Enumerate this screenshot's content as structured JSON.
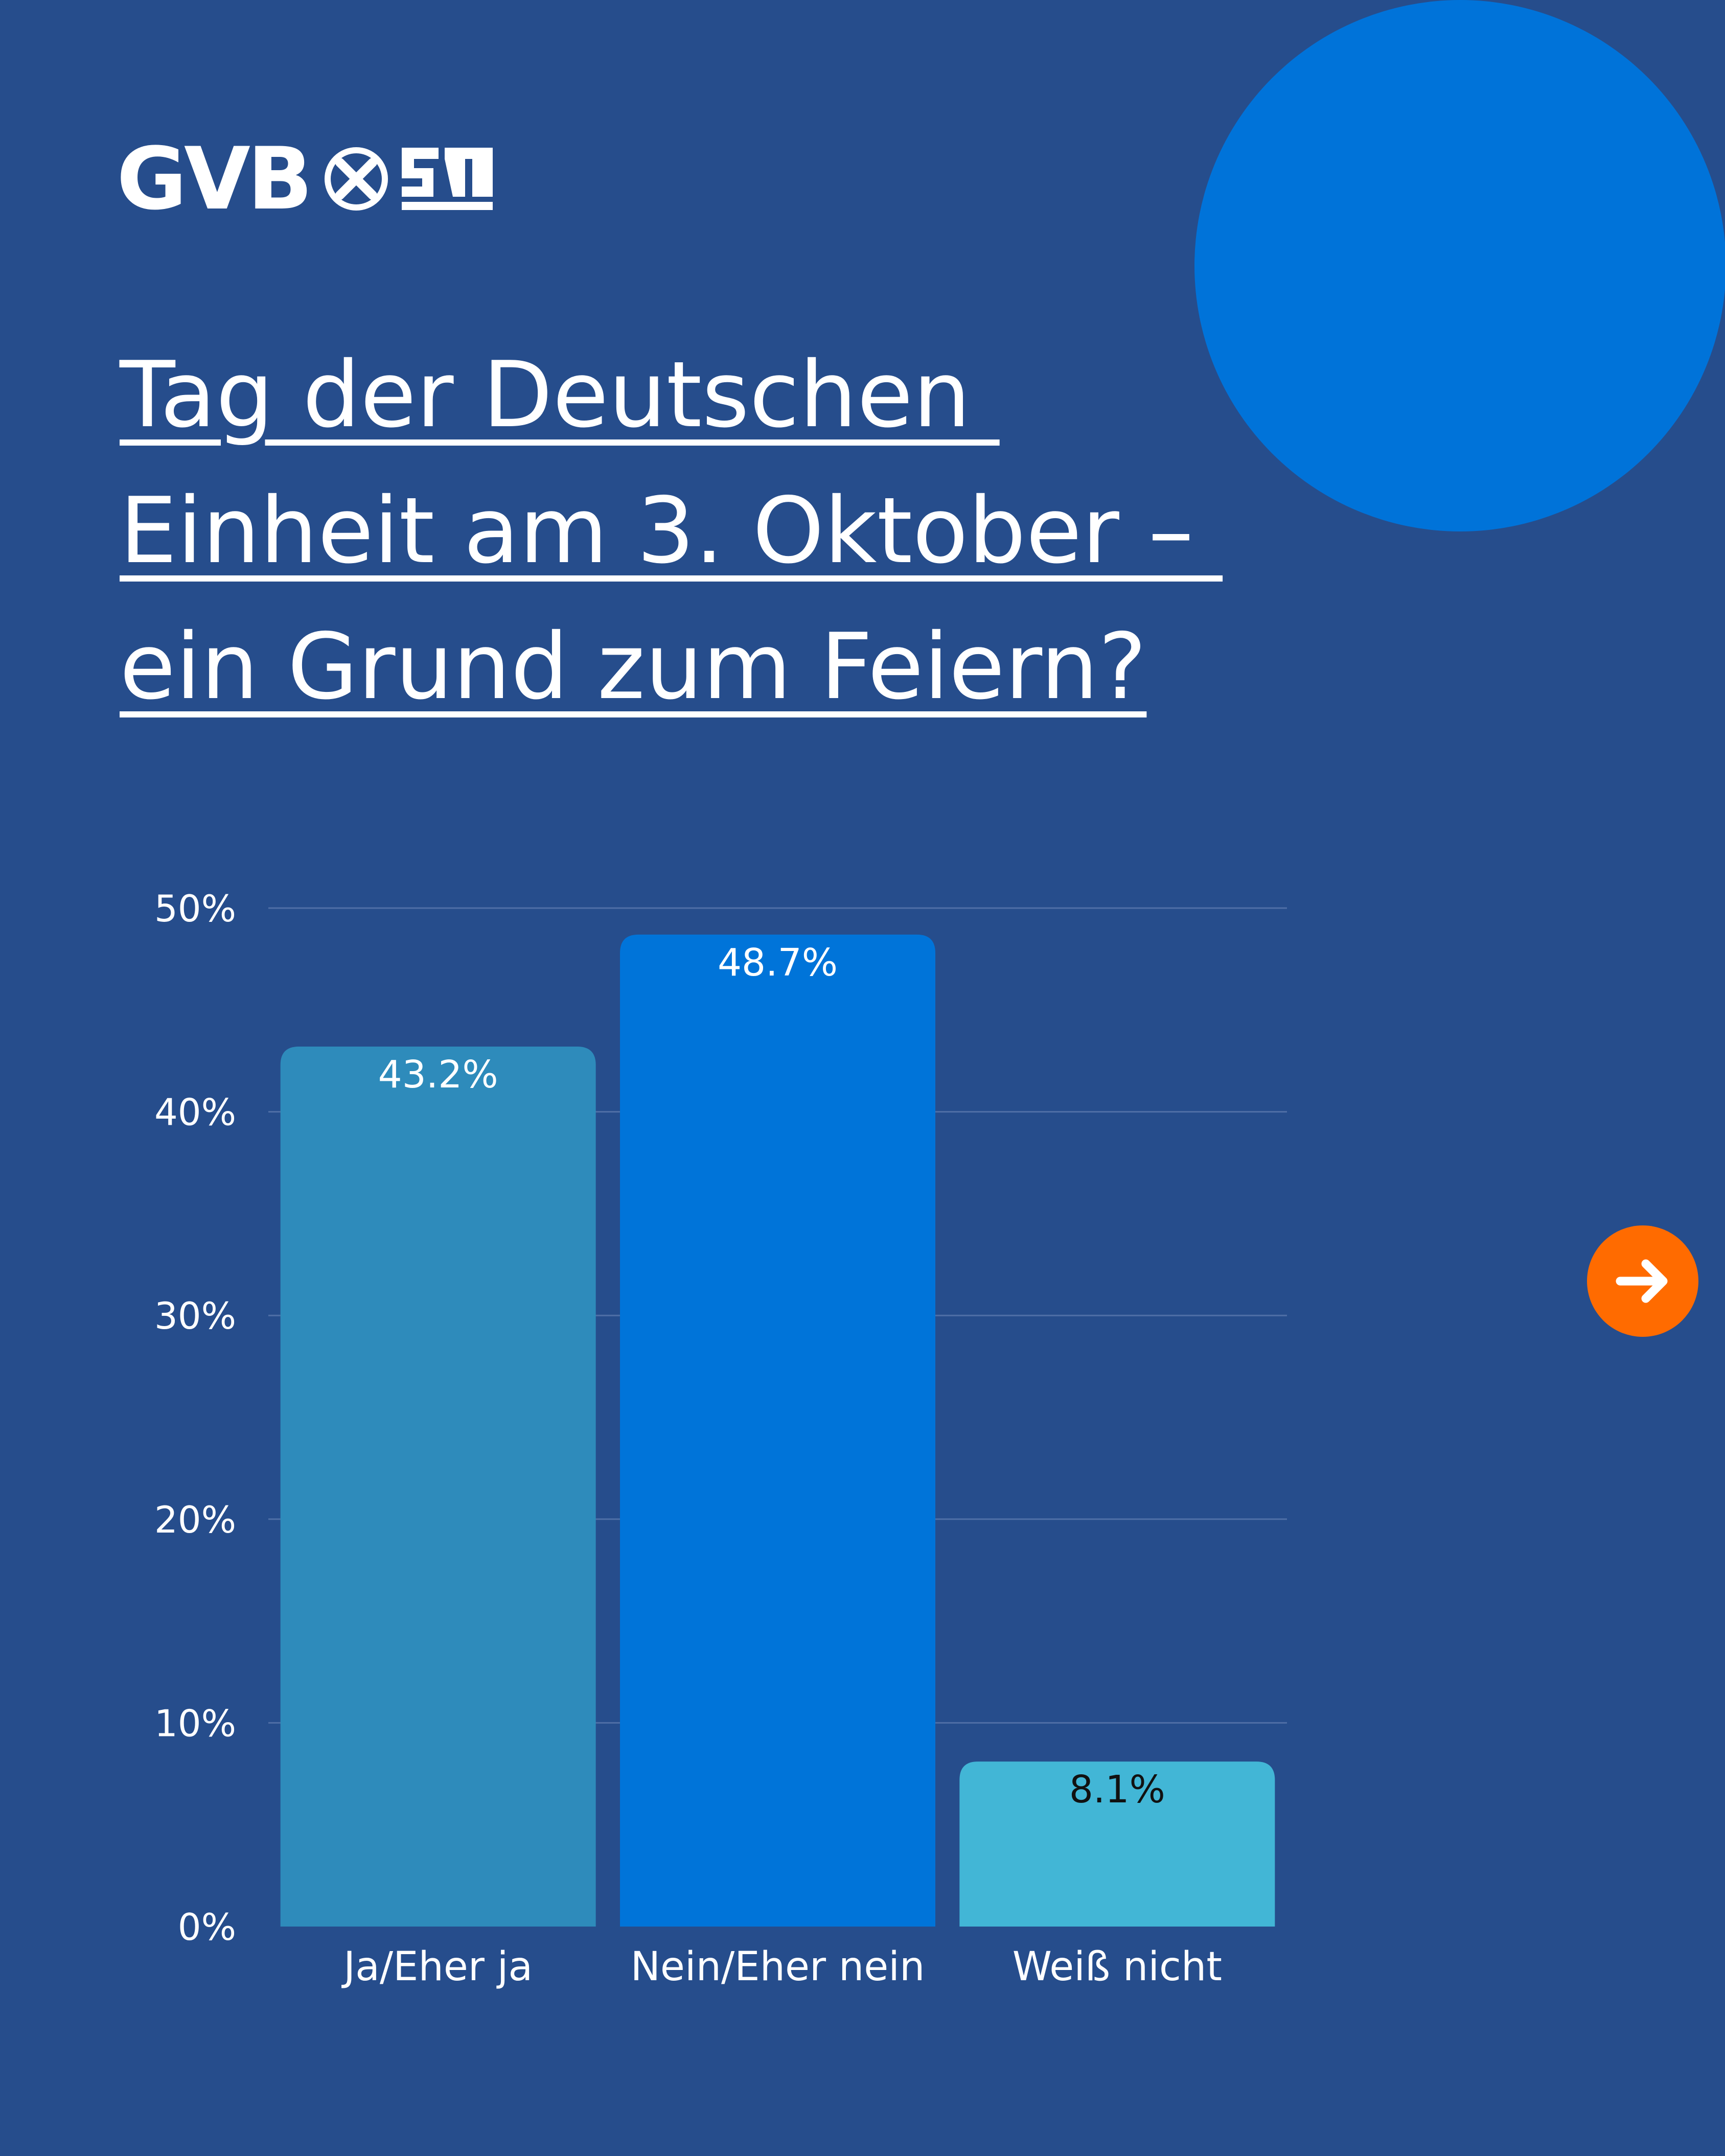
{
  "colors": {
    "background": "#264d8c",
    "decor_circle": "#0073d9",
    "text": "#ffffff",
    "gridline": "#4f6fa6",
    "next_button": "#ff6b00"
  },
  "logo": {
    "text": "GVB"
  },
  "title": {
    "lines": [
      "Tag der Deutschen ",
      "Einheit am 3. Oktober – ",
      "ein Grund zum Feiern?"
    ]
  },
  "chart_data": {
    "type": "bar",
    "categories": [
      "Ja/Eher ja",
      "Nein/Eher nein",
      "Weiß nicht"
    ],
    "values": [
      43.2,
      48.7,
      8.1
    ],
    "value_labels": [
      "43.2%",
      "48.7%",
      "8.1%"
    ],
    "bar_colors": [
      "#2e8bbb",
      "#0074d9",
      "#42b6d6"
    ],
    "label_colors": [
      "#ffffff",
      "#ffffff",
      "#111111"
    ],
    "ylim": [
      0,
      50
    ],
    "yticks": [
      0,
      10,
      20,
      30,
      40,
      50
    ],
    "ytick_labels": [
      "0%",
      "10%",
      "20%",
      "30%",
      "40%",
      "50%"
    ],
    "grid": true
  },
  "navigation": {
    "next_icon": "arrow-right-icon"
  }
}
